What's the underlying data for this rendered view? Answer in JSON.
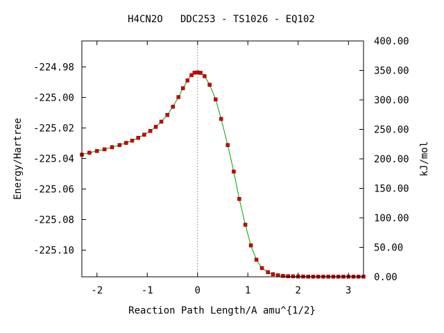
{
  "chart_data": {
    "type": "line",
    "title": "H4CN2O   DDC253 - TS1026 - EQ102",
    "xlabel": "Reaction Path Length/A amu^{1/2}",
    "ylabel": "Energy/Hartree",
    "y2label": "kJ/mol",
    "xlim": [
      -2.3,
      3.3
    ],
    "ylim": [
      -225.1175,
      -224.963
    ],
    "y2lim": [
      0,
      400
    ],
    "xticks": [
      -2,
      -1,
      0,
      1,
      2,
      3
    ],
    "xtick_labels": [
      "-2",
      "-1",
      "0",
      "1",
      "2",
      "3"
    ],
    "yticks": [
      -224.98,
      -225.0,
      -225.02,
      -225.04,
      -225.06,
      -225.08,
      -225.1
    ],
    "ytick_labels": [
      "-224.98",
      "-225.00",
      "-225.02",
      "-225.04",
      "-225.06",
      "-225.08",
      "-225.10"
    ],
    "y2ticks": [
      0,
      50,
      100,
      150,
      200,
      250,
      300,
      350,
      400
    ],
    "y2tick_labels": [
      "0.00",
      "50.00",
      "100.00",
      "150.00",
      "200.00",
      "250.00",
      "300.00",
      "350.00",
      "400.00"
    ],
    "ts_marker_x": 0,
    "colors": {
      "line": "#00a000",
      "points": "#cc0000",
      "ts_line": "#999999",
      "axes": "#000000"
    },
    "series": [
      {
        "x": [
          -2.3,
          -2.15,
          -2.0,
          -1.85,
          -1.7,
          -1.55,
          -1.42,
          -1.3,
          -1.18,
          -1.06,
          -0.94,
          -0.83,
          -0.72,
          -0.6,
          -0.49,
          -0.38,
          -0.29,
          -0.2,
          -0.12,
          -0.06,
          0.0,
          0.06,
          0.14,
          0.24,
          0.36,
          0.47,
          0.6,
          0.72,
          0.83,
          0.95,
          1.06,
          1.17,
          1.28,
          1.4,
          1.5,
          1.6,
          1.7,
          1.8,
          1.9,
          2.0,
          2.1,
          2.2,
          2.3,
          2.4,
          2.5,
          2.6,
          2.7,
          2.8,
          2.9,
          3.0,
          3.1,
          3.2,
          3.3
        ],
        "y": [
          -225.0375,
          -225.0362,
          -225.0351,
          -225.034,
          -225.0326,
          -225.0312,
          -225.0298,
          -225.0283,
          -225.0265,
          -225.0244,
          -225.022,
          -225.0193,
          -225.0159,
          -225.0115,
          -225.0061,
          -224.9998,
          -224.994,
          -224.9889,
          -224.9854,
          -224.9838,
          -224.9836,
          -224.9839,
          -224.9861,
          -224.9917,
          -225.0013,
          -225.0141,
          -225.0312,
          -225.0486,
          -225.0665,
          -225.0834,
          -225.0969,
          -225.1063,
          -225.1118,
          -225.1145,
          -225.1158,
          -225.1165,
          -225.1169,
          -225.1171,
          -225.1172,
          -225.1173,
          -225.1173,
          -225.1174,
          -225.1174,
          -225.1174,
          -225.1174,
          -225.1174,
          -225.1174,
          -225.1174,
          -225.1174,
          -225.1174,
          -225.1174,
          -225.1174,
          -225.1174
        ]
      }
    ]
  }
}
